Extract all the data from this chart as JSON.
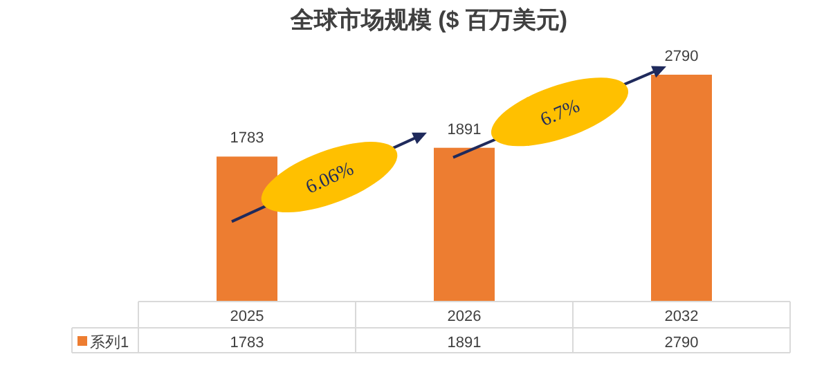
{
  "chart_data": {
    "type": "bar",
    "title": "全球市场规模 ($ 百万美元)",
    "categories": [
      "2025",
      "2026",
      "2032"
    ],
    "series": [
      {
        "name": "系列1",
        "color": "#ed7d31",
        "values": [
          1783,
          1891,
          2790
        ],
        "value_labels": [
          "1783",
          "1891",
          "2790"
        ]
      }
    ],
    "data_labels": true,
    "legend": "bottom",
    "annotations": [
      "6.06%",
      "6.7%",
      "1783",
      "1891",
      "2790"
    ]
  }
}
